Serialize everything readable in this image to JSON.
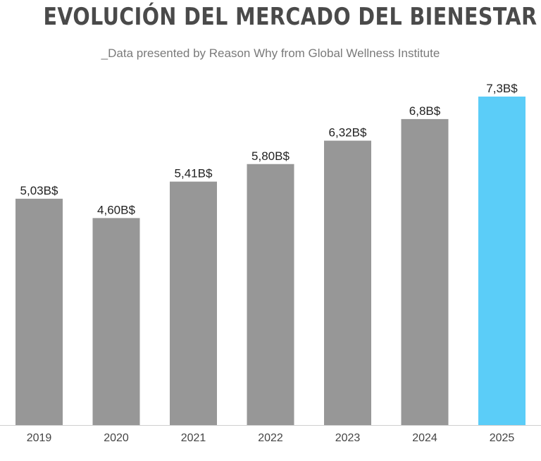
{
  "title": "EVOLUCIÓN DEL MERCADO DEL BIENESTAR",
  "subtitle": "_Data presented by Reason Why from Global Wellness Institute",
  "colors": {
    "bar_default": "#979797",
    "bar_highlight": "#5bcdf8",
    "axis": "#cfcfcf",
    "label_text": "#222222",
    "tick_text": "#444444"
  },
  "chart_data": {
    "type": "bar",
    "categories": [
      "2019",
      "2020",
      "2021",
      "2022",
      "2023",
      "2024",
      "2025"
    ],
    "values": [
      5.03,
      4.6,
      5.41,
      5.8,
      6.32,
      6.8,
      7.3
    ],
    "data_labels": [
      "5,03B$",
      "4,60B$",
      "5,41B$",
      "5,80B$",
      "6,32B$",
      "6,8B$",
      "7,3B$"
    ],
    "highlight_index": 6,
    "ylim": [
      0,
      7.3
    ],
    "grid": false,
    "legend": "none"
  }
}
